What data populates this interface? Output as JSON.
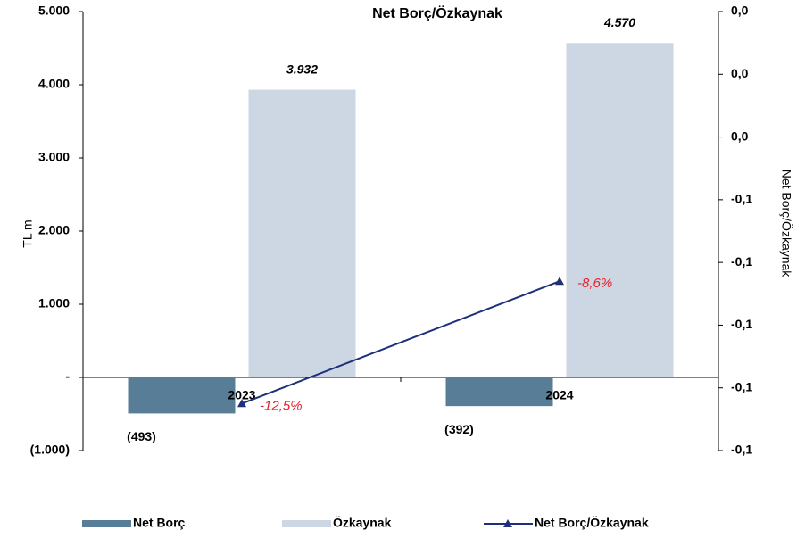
{
  "chart_data": {
    "type": "bar",
    "title": "Net Borç/Özkaynak",
    "y_label": "TL m",
    "y2_label": "Net Borç/Özkaynak",
    "categories": [
      "2023",
      "2024"
    ],
    "series": [
      {
        "name": "Net Borç",
        "type": "bar",
        "color": "#587d96",
        "values": [
          -493,
          -392
        ],
        "value_labels": [
          "(493)",
          "(392)"
        ]
      },
      {
        "name": "Özkaynak",
        "type": "bar",
        "color": "#cdd7e3",
        "values": [
          3932,
          4570
        ],
        "value_labels": [
          "3.932",
          "4.570"
        ]
      },
      {
        "name": "Net Borç/Özkaynak",
        "type": "line",
        "axis": "y2",
        "color": "#1f2f7a",
        "label_color": "#e8202a",
        "values": [
          -0.125,
          -0.086
        ],
        "value_labels": [
          "-12,5%",
          "-8,6%"
        ]
      }
    ],
    "ylim": [
      -1000,
      5000
    ],
    "yticks": [
      {
        "value": -1000,
        "label": "(1.000)"
      },
      {
        "value": 0,
        "label": "-"
      },
      {
        "value": 1000,
        "label": "1.000"
      },
      {
        "value": 2000,
        "label": "2.000"
      },
      {
        "value": 3000,
        "label": "3.000"
      },
      {
        "value": 4000,
        "label": "4.000"
      },
      {
        "value": 5000,
        "label": "5.000"
      }
    ],
    "y2lim": [
      -0.14,
      0
    ],
    "y2ticks": [
      {
        "value": -0.14,
        "label": "-0,1"
      },
      {
        "value": -0.12,
        "label": "-0,1"
      },
      {
        "value": -0.1,
        "label": "-0,1"
      },
      {
        "value": -0.08,
        "label": "-0,1"
      },
      {
        "value": -0.06,
        "label": "-0,1"
      },
      {
        "value": -0.04,
        "label": "0,0"
      },
      {
        "value": -0.02,
        "label": "0,0"
      },
      {
        "value": 0,
        "label": "0,0"
      }
    ],
    "legend": "bottom"
  }
}
